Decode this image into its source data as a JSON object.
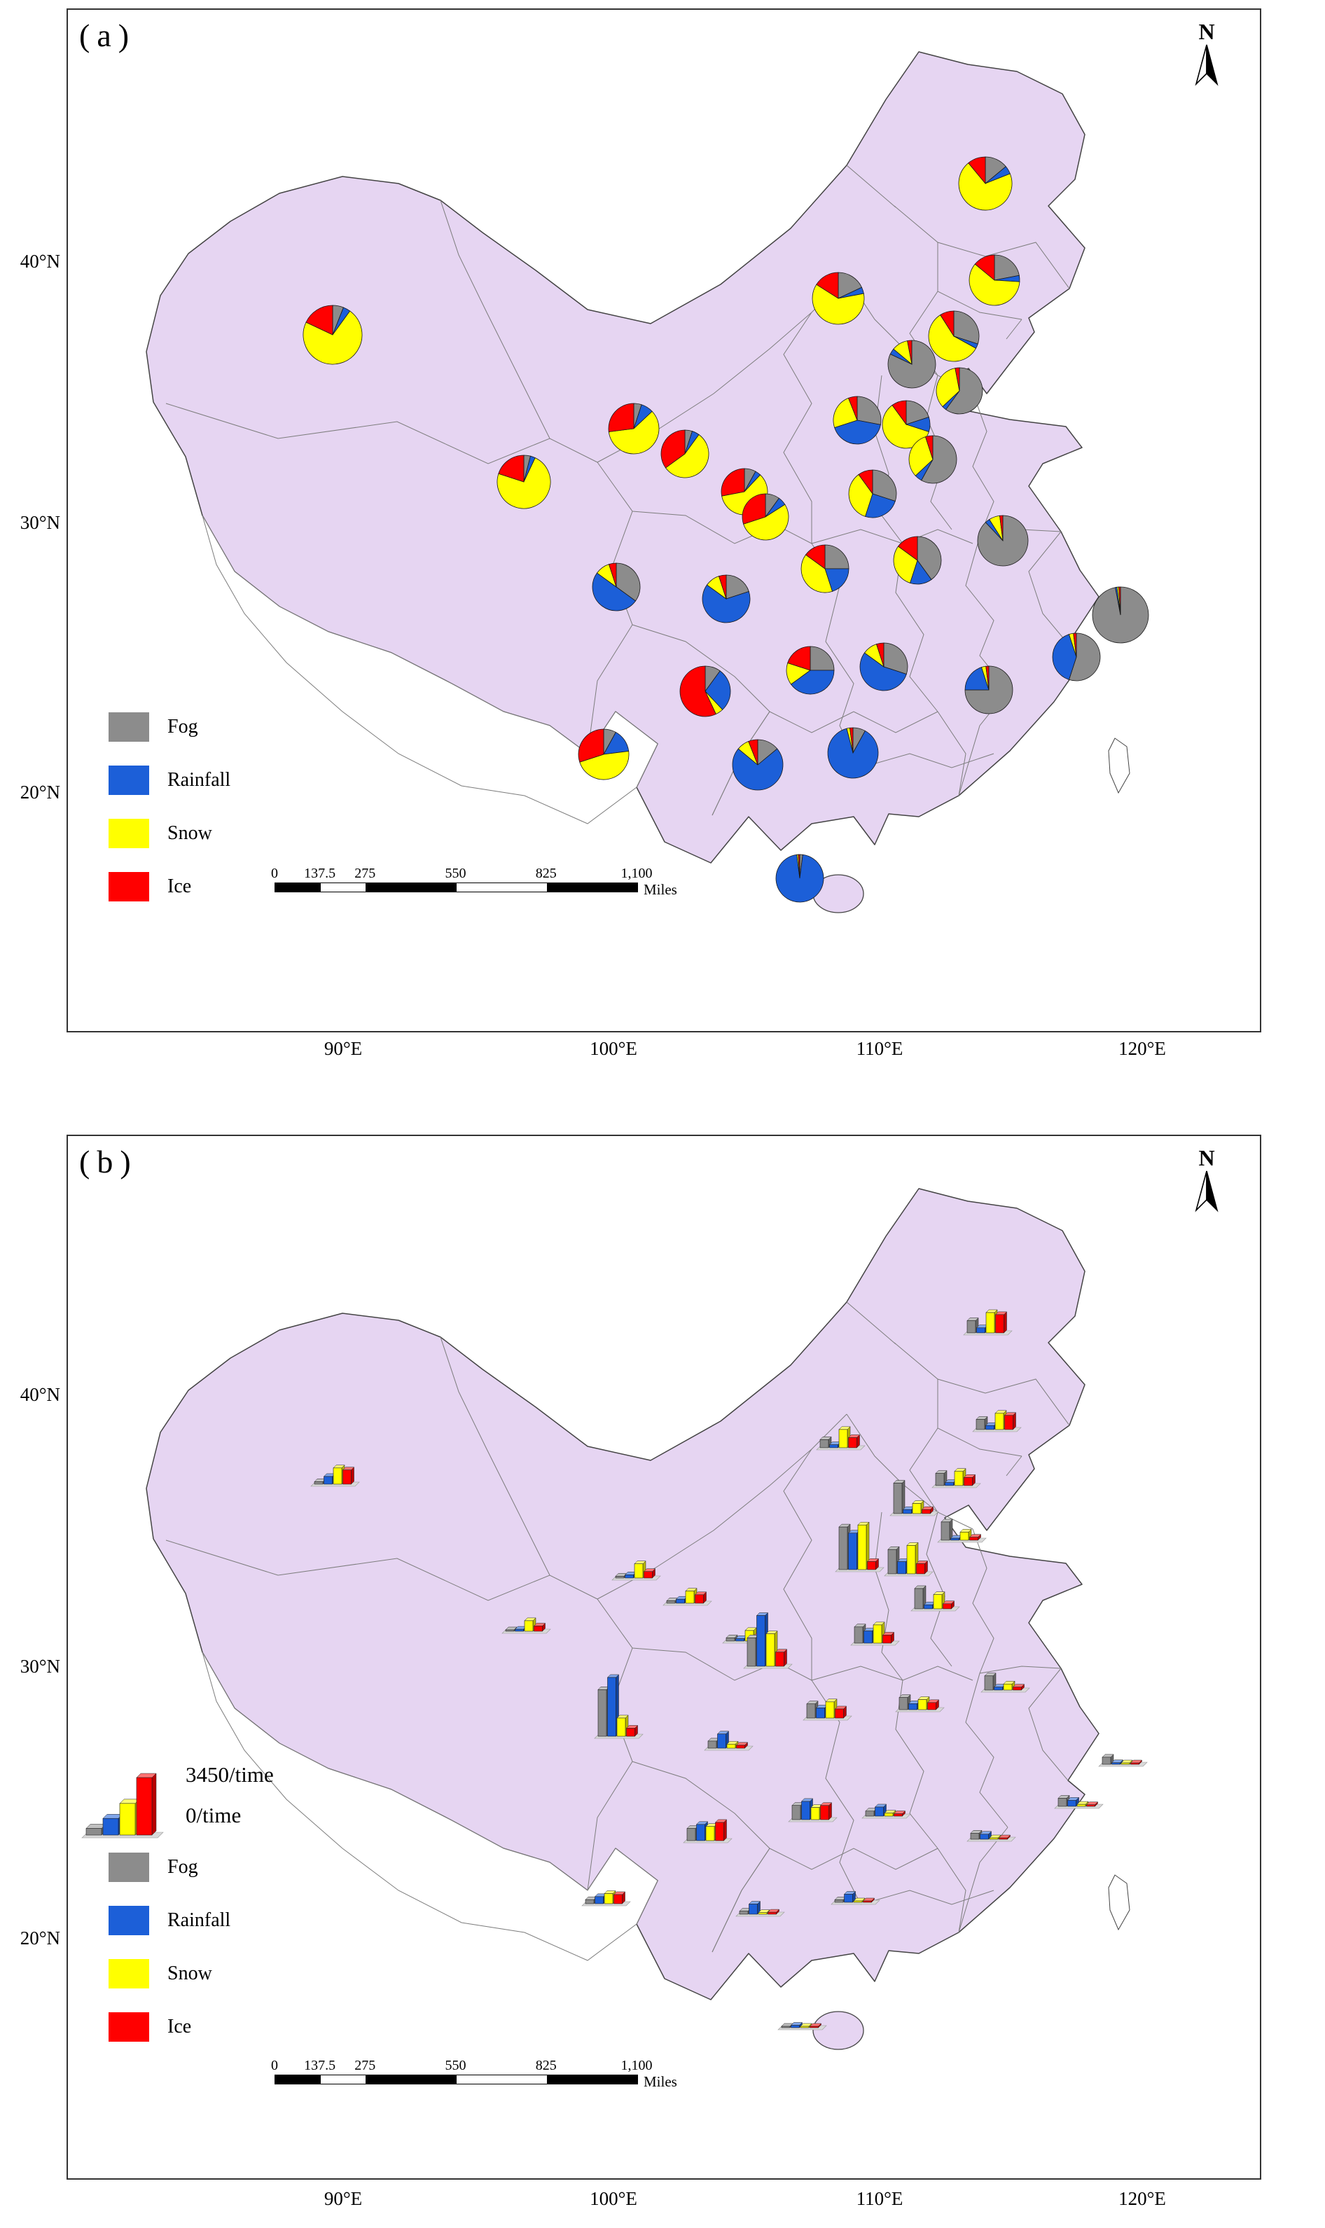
{
  "common": {
    "north_label": "N"
  },
  "colors": {
    "fog": "#8C8C8C",
    "rainfall": "#1C5FD8",
    "snow": "#FFFF00",
    "ice": "#FF0000",
    "map_fill": "#E6D5F2",
    "map_outline": "#444444",
    "province_line": "#7D7D7D",
    "frame": "#333333"
  },
  "panel_a": {
    "label": "(a)"
  },
  "panel_b": {
    "label": "(b)",
    "bar_scale_max_label": "3450/time",
    "bar_scale_min_label": "0/time"
  },
  "legend": {
    "items": [
      {
        "key": "fog",
        "label": "Fog"
      },
      {
        "key": "rainfall",
        "label": "Rainfall"
      },
      {
        "key": "snow",
        "label": "Snow"
      },
      {
        "key": "ice",
        "label": "Ice"
      }
    ]
  },
  "scalebar": {
    "ticks": [
      "0",
      "137.5",
      "275",
      "550",
      "825",
      "1,100"
    ],
    "unit": "Miles"
  },
  "axes": {
    "lat": [
      "40°N",
      "30°N",
      "20°N"
    ],
    "lon": [
      "90°E",
      "100°E",
      "110°E",
      "120°E"
    ]
  },
  "chart_data": [
    {
      "type": "pie",
      "panel": "a",
      "series": [
        "Fog",
        "Rainfall",
        "Snow",
        "Ice"
      ],
      "value_unit": "proportion (%)",
      "legend_position": "lower-left",
      "points": [
        {
          "id": 1,
          "x": 378,
          "y": 464,
          "r": 42,
          "fog": 6,
          "rainfall": 4,
          "snow": 72,
          "ice": 18
        },
        {
          "id": 2,
          "x": 651,
          "y": 674,
          "r": 38,
          "fog": 4,
          "rainfall": 3,
          "snow": 73,
          "ice": 20
        },
        {
          "id": 3,
          "x": 808,
          "y": 598,
          "r": 36,
          "fog": 5,
          "rainfall": 8,
          "snow": 60,
          "ice": 27
        },
        {
          "id": 4,
          "x": 881,
          "y": 634,
          "r": 34,
          "fog": 5,
          "rainfall": 5,
          "snow": 55,
          "ice": 35
        },
        {
          "id": 5,
          "x": 966,
          "y": 688,
          "r": 33,
          "fog": 8,
          "rainfall": 4,
          "snow": 60,
          "ice": 28
        },
        {
          "id": 6,
          "x": 996,
          "y": 724,
          "r": 33,
          "fog": 10,
          "rainfall": 6,
          "snow": 54,
          "ice": 30
        },
        {
          "id": 7,
          "x": 1100,
          "y": 412,
          "r": 37,
          "fog": 18,
          "rainfall": 4,
          "snow": 62,
          "ice": 16
        },
        {
          "id": 8,
          "x": 1310,
          "y": 248,
          "r": 38,
          "fog": 14,
          "rainfall": 5,
          "snow": 70,
          "ice": 11
        },
        {
          "id": 9,
          "x": 1323,
          "y": 386,
          "r": 36,
          "fog": 22,
          "rainfall": 4,
          "snow": 60,
          "ice": 14
        },
        {
          "id": 10,
          "x": 1265,
          "y": 466,
          "r": 36,
          "fog": 30,
          "rainfall": 3,
          "snow": 58,
          "ice": 9
        },
        {
          "id": 11,
          "x": 1205,
          "y": 506,
          "r": 34,
          "fog": 82,
          "rainfall": 4,
          "snow": 11,
          "ice": 3
        },
        {
          "id": 12,
          "x": 1273,
          "y": 544,
          "r": 33,
          "fog": 60,
          "rainfall": 3,
          "snow": 34,
          "ice": 3
        },
        {
          "id": 13,
          "x": 1197,
          "y": 592,
          "r": 34,
          "fog": 20,
          "rainfall": 10,
          "snow": 60,
          "ice": 10
        },
        {
          "id": 14,
          "x": 1127,
          "y": 586,
          "r": 34,
          "fog": 28,
          "rainfall": 42,
          "snow": 24,
          "ice": 6
        },
        {
          "id": 15,
          "x": 1235,
          "y": 642,
          "r": 34,
          "fog": 58,
          "rainfall": 5,
          "snow": 32,
          "ice": 5
        },
        {
          "id": 16,
          "x": 1149,
          "y": 691,
          "r": 34,
          "fog": 30,
          "rainfall": 25,
          "snow": 35,
          "ice": 10
        },
        {
          "id": 17,
          "x": 1335,
          "y": 758,
          "r": 36,
          "fog": 88,
          "rainfall": 3,
          "snow": 7,
          "ice": 2
        },
        {
          "id": 18,
          "x": 1503,
          "y": 864,
          "r": 40,
          "fog": 97,
          "rainfall": 1,
          "snow": 1,
          "ice": 1
        },
        {
          "id": 19,
          "x": 1213,
          "y": 786,
          "r": 34,
          "fog": 40,
          "rainfall": 15,
          "snow": 30,
          "ice": 15
        },
        {
          "id": 20,
          "x": 1081,
          "y": 798,
          "r": 34,
          "fog": 25,
          "rainfall": 20,
          "snow": 40,
          "ice": 15
        },
        {
          "id": 21,
          "x": 940,
          "y": 841,
          "r": 34,
          "fog": 20,
          "rainfall": 65,
          "snow": 10,
          "ice": 5
        },
        {
          "id": 22,
          "x": 783,
          "y": 824,
          "r": 34,
          "fog": 35,
          "rainfall": 50,
          "snow": 10,
          "ice": 5
        },
        {
          "id": 23,
          "x": 1440,
          "y": 924,
          "r": 34,
          "fog": 55,
          "rainfall": 40,
          "snow": 3,
          "ice": 2
        },
        {
          "id": 24,
          "x": 1165,
          "y": 938,
          "r": 34,
          "fog": 30,
          "rainfall": 55,
          "snow": 10,
          "ice": 5
        },
        {
          "id": 25,
          "x": 1060,
          "y": 943,
          "r": 34,
          "fog": 25,
          "rainfall": 40,
          "snow": 15,
          "ice": 20
        },
        {
          "id": 26,
          "x": 910,
          "y": 973,
          "r": 36,
          "fog": 10,
          "rainfall": 28,
          "snow": 5,
          "ice": 57
        },
        {
          "id": 27,
          "x": 1315,
          "y": 971,
          "r": 34,
          "fog": 75,
          "rainfall": 20,
          "snow": 3,
          "ice": 2
        },
        {
          "id": 28,
          "x": 765,
          "y": 1063,
          "r": 36,
          "fog": 8,
          "rainfall": 15,
          "snow": 47,
          "ice": 30
        },
        {
          "id": 29,
          "x": 985,
          "y": 1078,
          "r": 36,
          "fog": 14,
          "rainfall": 72,
          "snow": 8,
          "ice": 6
        },
        {
          "id": 30,
          "x": 1121,
          "y": 1061,
          "r": 36,
          "fog": 8,
          "rainfall": 88,
          "snow": 2,
          "ice": 2
        },
        {
          "id": 31,
          "x": 1045,
          "y": 1240,
          "r": 34,
          "fog": 2,
          "rainfall": 96,
          "snow": 1,
          "ice": 1
        }
      ]
    },
    {
      "type": "bar",
      "panel": "b",
      "series": [
        "Fog",
        "Rainfall",
        "Snow",
        "Ice"
      ],
      "ymin": 0,
      "ymax": 3450,
      "value_unit": "times",
      "points": [
        {
          "id": 1,
          "x": 378,
          "y": 464,
          "fog": 120,
          "rainfall": 380,
          "snow": 800,
          "ice": 700
        },
        {
          "id": 2,
          "x": 651,
          "y": 674,
          "fog": 60,
          "rainfall": 100,
          "snow": 520,
          "ice": 260
        },
        {
          "id": 3,
          "x": 808,
          "y": 598,
          "fog": 90,
          "rainfall": 160,
          "snow": 700,
          "ice": 320
        },
        {
          "id": 4,
          "x": 881,
          "y": 634,
          "fog": 120,
          "rainfall": 200,
          "snow": 600,
          "ice": 420
        },
        {
          "id": 5,
          "x": 966,
          "y": 688,
          "fog": 160,
          "rainfall": 120,
          "snow": 520,
          "ice": 300
        },
        {
          "id": 6,
          "x": 996,
          "y": 724,
          "fog": 1400,
          "rainfall": 2500,
          "snow": 1600,
          "ice": 700
        },
        {
          "id": 7,
          "x": 1100,
          "y": 412,
          "fog": 400,
          "rainfall": 150,
          "snow": 900,
          "ice": 500
        },
        {
          "id": 8,
          "x": 1310,
          "y": 248,
          "fog": 600,
          "rainfall": 250,
          "snow": 1000,
          "ice": 900
        },
        {
          "id": 9,
          "x": 1323,
          "y": 386,
          "fog": 500,
          "rainfall": 200,
          "snow": 800,
          "ice": 700
        },
        {
          "id": 10,
          "x": 1265,
          "y": 466,
          "fog": 600,
          "rainfall": 150,
          "snow": 700,
          "ice": 400
        },
        {
          "id": 11,
          "x": 1205,
          "y": 506,
          "fog": 1500,
          "rainfall": 200,
          "snow": 500,
          "ice": 200
        },
        {
          "id": 12,
          "x": 1273,
          "y": 544,
          "fog": 900,
          "rainfall": 100,
          "snow": 400,
          "ice": 150
        },
        {
          "id": 13,
          "x": 1197,
          "y": 592,
          "fog": 1200,
          "rainfall": 600,
          "snow": 1400,
          "ice": 500
        },
        {
          "id": 14,
          "x": 1127,
          "y": 586,
          "fog": 2100,
          "rainfall": 1800,
          "snow": 2200,
          "ice": 400
        },
        {
          "id": 15,
          "x": 1235,
          "y": 642,
          "fog": 1000,
          "rainfall": 200,
          "snow": 700,
          "ice": 250
        },
        {
          "id": 16,
          "x": 1149,
          "y": 691,
          "fog": 800,
          "rainfall": 600,
          "snow": 900,
          "ice": 400
        },
        {
          "id": 17,
          "x": 1335,
          "y": 758,
          "fog": 700,
          "rainfall": 150,
          "snow": 300,
          "ice": 150
        },
        {
          "id": 18,
          "x": 1503,
          "y": 864,
          "fog": 350,
          "rainfall": 80,
          "snow": 60,
          "ice": 40
        },
        {
          "id": 19,
          "x": 1213,
          "y": 786,
          "fog": 600,
          "rainfall": 300,
          "snow": 500,
          "ice": 350
        },
        {
          "id": 20,
          "x": 1081,
          "y": 798,
          "fog": 700,
          "rainfall": 500,
          "snow": 800,
          "ice": 450
        },
        {
          "id": 21,
          "x": 940,
          "y": 841,
          "fog": 350,
          "rainfall": 700,
          "snow": 200,
          "ice": 150
        },
        {
          "id": 22,
          "x": 783,
          "y": 824,
          "fog": 2300,
          "rainfall": 2900,
          "snow": 900,
          "ice": 400
        },
        {
          "id": 23,
          "x": 1440,
          "y": 924,
          "fog": 400,
          "rainfall": 300,
          "snow": 100,
          "ice": 80
        },
        {
          "id": 24,
          "x": 1165,
          "y": 938,
          "fog": 250,
          "rainfall": 450,
          "snow": 150,
          "ice": 120
        },
        {
          "id": 25,
          "x": 1060,
          "y": 943,
          "fog": 700,
          "rainfall": 900,
          "snow": 600,
          "ice": 700
        },
        {
          "id": 26,
          "x": 910,
          "y": 973,
          "fog": 600,
          "rainfall": 800,
          "snow": 700,
          "ice": 900
        },
        {
          "id": 27,
          "x": 1315,
          "y": 971,
          "fog": 300,
          "rainfall": 250,
          "snow": 60,
          "ice": 50
        },
        {
          "id": 28,
          "x": 765,
          "y": 1063,
          "fog": 200,
          "rainfall": 350,
          "snow": 500,
          "ice": 450
        },
        {
          "id": 29,
          "x": 985,
          "y": 1078,
          "fog": 150,
          "rainfall": 500,
          "snow": 80,
          "ice": 100
        },
        {
          "id": 30,
          "x": 1121,
          "y": 1061,
          "fog": 120,
          "rainfall": 400,
          "snow": 40,
          "ice": 40
        },
        {
          "id": 31,
          "x": 1045,
          "y": 1240,
          "fog": 40,
          "rainfall": 120,
          "snow": 10,
          "ice": 10
        }
      ]
    }
  ]
}
